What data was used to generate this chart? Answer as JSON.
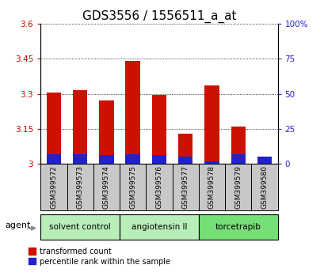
{
  "title": "GDS3556 / 1556511_a_at",
  "samples": [
    "GSM399572",
    "GSM399573",
    "GSM399574",
    "GSM399575",
    "GSM399576",
    "GSM399577",
    "GSM399578",
    "GSM399579",
    "GSM399580"
  ],
  "red_values": [
    3.305,
    3.315,
    3.27,
    3.44,
    3.295,
    3.13,
    3.335,
    3.16,
    3.0
  ],
  "blue_pct": [
    7,
    7,
    6,
    7,
    6,
    5,
    2,
    7,
    5
  ],
  "base": 3.0,
  "ylim_left": [
    3.0,
    3.6
  ],
  "ylim_right": [
    0,
    100
  ],
  "yticks_left": [
    3.0,
    3.15,
    3.3,
    3.45,
    3.6
  ],
  "yticks_right": [
    0,
    25,
    50,
    75,
    100
  ],
  "ytick_labels_left": [
    "3",
    "3.15",
    "3.3",
    "3.45",
    "3.6"
  ],
  "ytick_labels_right": [
    "0",
    "25",
    "50",
    "75",
    "100%"
  ],
  "groups": [
    {
      "label": "solvent control",
      "start": 0,
      "end": 2,
      "color": "#b8eeb8"
    },
    {
      "label": "angiotensin II",
      "start": 3,
      "end": 5,
      "color": "#b8eeb8"
    },
    {
      "label": "torcetrapib",
      "start": 6,
      "end": 8,
      "color": "#76e076"
    }
  ],
  "bar_color_red": "#cc1100",
  "bar_color_blue": "#2222cc",
  "bar_width": 0.55,
  "background_plot": "#ffffff",
  "background_label": "#c8c8c8",
  "agent_label": "agent",
  "legend_red": "transformed count",
  "legend_blue": "percentile rank within the sample",
  "title_fontsize": 11,
  "tick_fontsize": 7.5,
  "label_fontsize": 8
}
